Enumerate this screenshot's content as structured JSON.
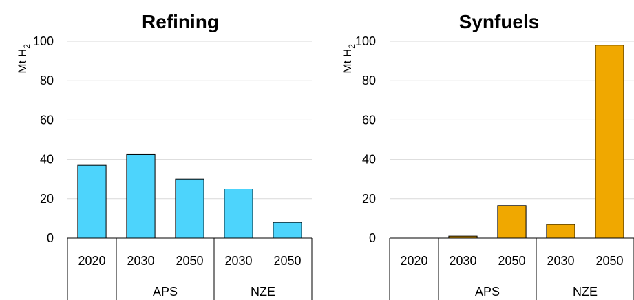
{
  "colors": {
    "refining": "#4DD4FC",
    "synfuels": "#F0A800",
    "gridline": "#D9D9D9",
    "axis": "#000000",
    "text": "#000000"
  },
  "chart_data": [
    {
      "type": "bar",
      "title": "Refining",
      "ylabel": "Mt H2",
      "ylim": [
        0,
        100
      ],
      "yticks": [
        "0",
        "20",
        "40",
        "60",
        "80",
        "100"
      ],
      "grid": true,
      "categories": [
        "2020",
        "2030",
        "2050",
        "2030",
        "2050"
      ],
      "groups": [
        {
          "label": "",
          "start": 0,
          "end": 0
        },
        {
          "label": "APS",
          "start": 1,
          "end": 2
        },
        {
          "label": "NZE",
          "start": 3,
          "end": 4
        }
      ],
      "values": [
        37,
        42.5,
        30,
        25,
        8
      ]
    },
    {
      "type": "bar",
      "title": "Synfuels",
      "ylabel": "Mt H2",
      "ylim": [
        0,
        100
      ],
      "yticks": [
        "0",
        "20",
        "40",
        "60",
        "80",
        "100"
      ],
      "grid": true,
      "categories": [
        "2020",
        "2030",
        "2050",
        "2030",
        "2050"
      ],
      "groups": [
        {
          "label": "",
          "start": 0,
          "end": 0
        },
        {
          "label": "APS",
          "start": 1,
          "end": 2
        },
        {
          "label": "NZE",
          "start": 3,
          "end": 4
        }
      ],
      "values": [
        0,
        1,
        16.5,
        7,
        98
      ]
    }
  ]
}
